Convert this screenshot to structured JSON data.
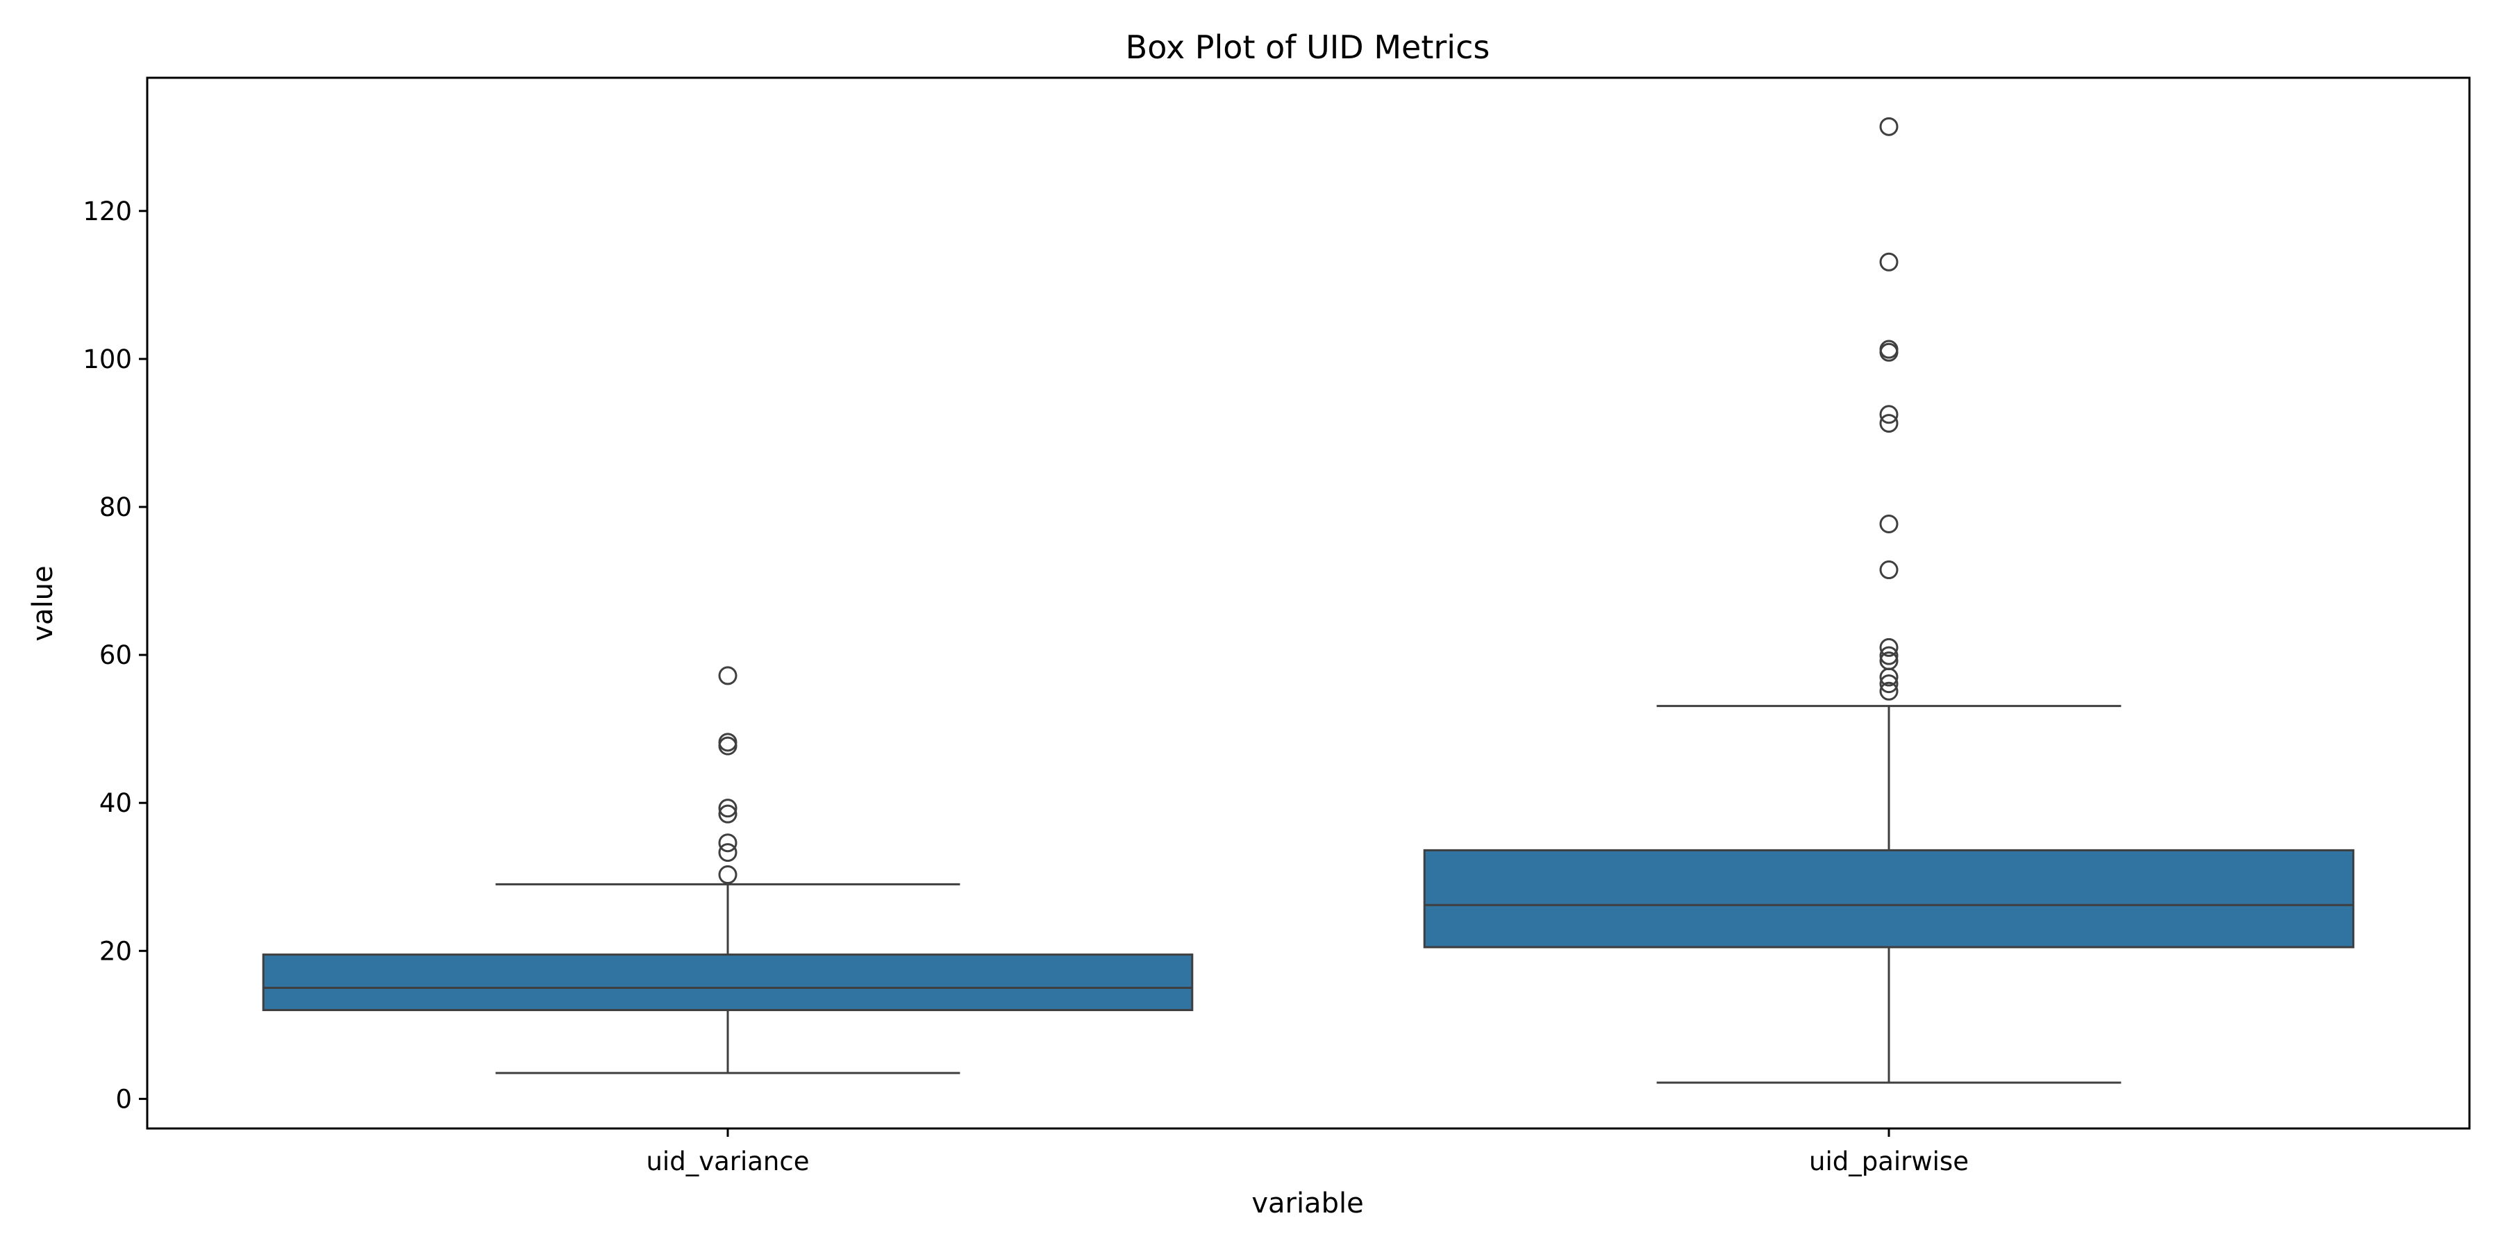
{
  "chart_data": {
    "type": "box",
    "title": "Box Plot of UID Metrics",
    "xlabel": "variable",
    "ylabel": "value",
    "ylim": [
      -4,
      138
    ],
    "yticks": [
      0,
      20,
      40,
      60,
      80,
      100,
      120
    ],
    "categories": [
      "uid_variance",
      "uid_pairwise"
    ],
    "box_color": "#3274a1",
    "line_color": "#3f3f3f",
    "boxes": [
      {
        "name": "uid_variance",
        "whisker_low": 3.5,
        "q1": 12.0,
        "median": 15.0,
        "q3": 19.5,
        "whisker_high": 29.0,
        "outliers": [
          30.3,
          33.3,
          34.6,
          38.5,
          39.3,
          47.7,
          48.2,
          57.2
        ]
      },
      {
        "name": "uid_pairwise",
        "whisker_low": 2.2,
        "q1": 20.5,
        "median": 26.2,
        "q3": 33.6,
        "whisker_high": 53.1,
        "outliers": [
          55.1,
          56.1,
          57.0,
          59.2,
          59.9,
          61.0,
          71.5,
          77.7,
          91.3,
          92.5,
          100.9,
          101.3,
          113.1,
          131.4
        ]
      }
    ],
    "grid": false,
    "legend": "none"
  }
}
